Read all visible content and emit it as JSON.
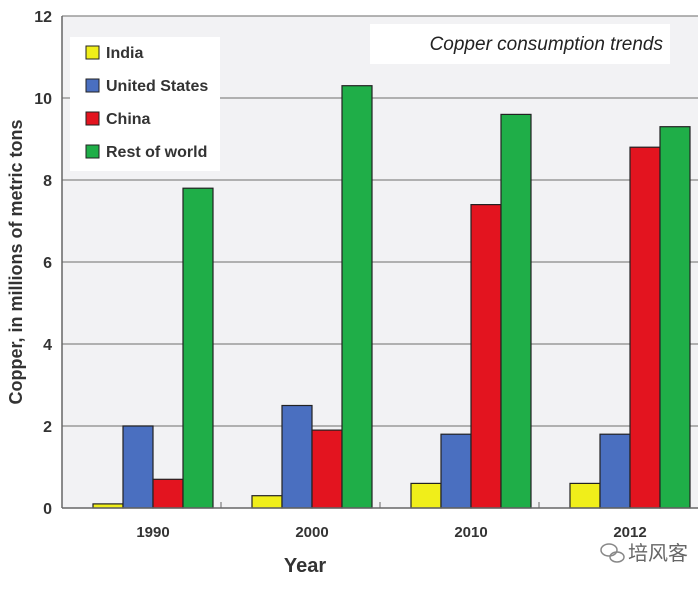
{
  "chart_data": {
    "type": "bar",
    "title": "Copper consumption trends",
    "xlabel": "Year",
    "ylabel": "Copper, in millions of metric tons",
    "categories": [
      "1990",
      "2000",
      "2010",
      "2012"
    ],
    "ylim": [
      0,
      12
    ],
    "yticks": [
      0,
      2,
      4,
      6,
      8,
      10,
      12
    ],
    "grid": true,
    "legend_position": "top-left",
    "series": [
      {
        "name": "India",
        "color": "#f0ee1a",
        "values": [
          0.1,
          0.3,
          0.6,
          0.6
        ]
      },
      {
        "name": "United States",
        "color": "#4a6fc0",
        "values": [
          2.0,
          2.5,
          1.8,
          1.8
        ]
      },
      {
        "name": "China",
        "color": "#e3141f",
        "values": [
          0.7,
          1.9,
          7.4,
          8.8
        ]
      },
      {
        "name": "Rest of world",
        "color": "#1fae48",
        "values": [
          7.8,
          10.3,
          9.6,
          9.3
        ]
      }
    ]
  },
  "watermark": "培风客"
}
